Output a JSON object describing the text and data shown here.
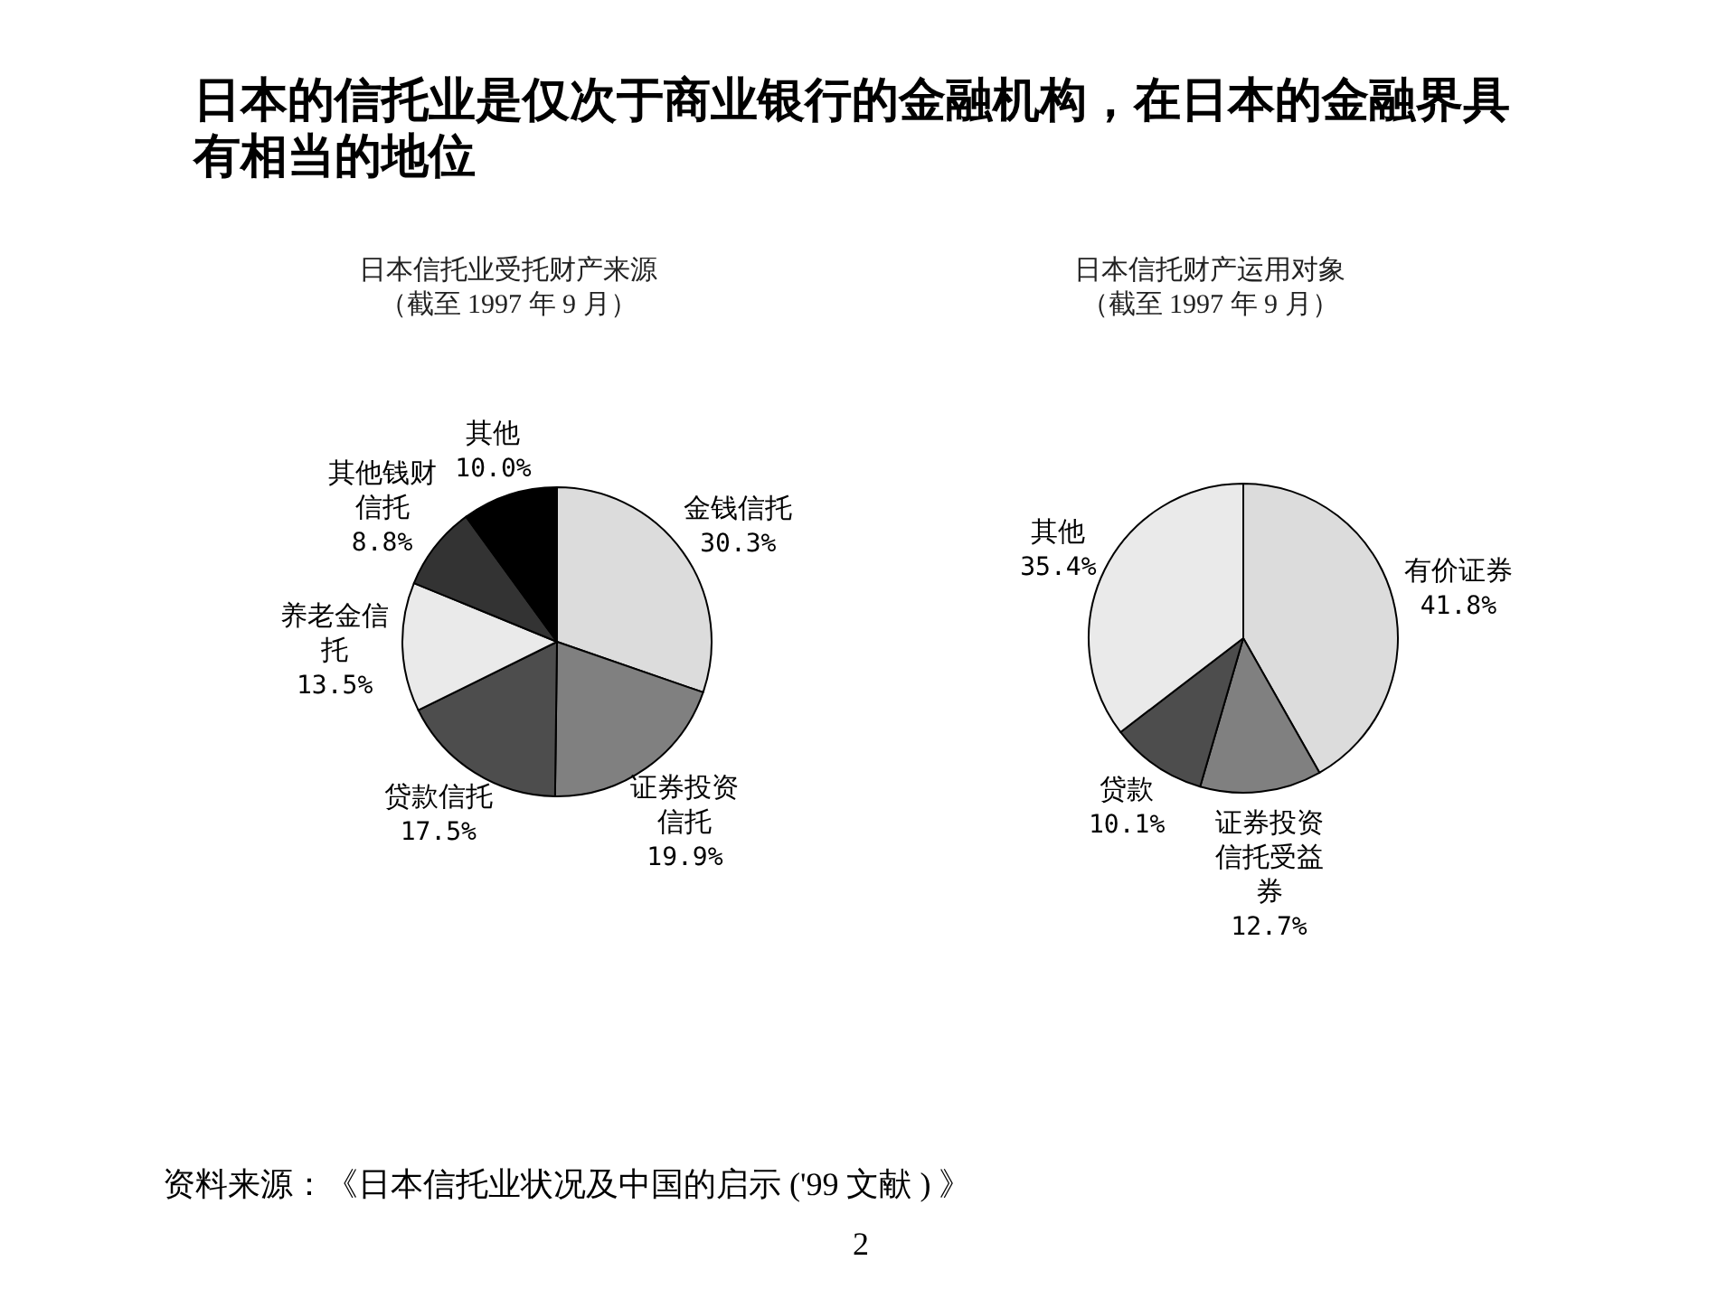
{
  "chart_data": [
    {
      "type": "pie",
      "title": "日本信托业受托财产来源",
      "subtitle": "（截至 1997 年 9 月）",
      "categories": [
        "金钱信托",
        "证券投资信托",
        "贷款信托",
        "养老金信托",
        "其他钱财信托",
        "其他"
      ],
      "values": [
        30.3,
        19.9,
        17.5,
        13.5,
        8.8,
        10.0
      ],
      "value_labels": [
        "30.3%",
        "19.9%",
        "17.5%",
        "13.5%",
        "8.8%",
        "10.0%"
      ],
      "colors": [
        "#dcdcdc",
        "#808080",
        "#4d4d4d",
        "#eaeaea",
        "#333333",
        "#000000"
      ],
      "annotations": [
        "日本的信托业是仅次于商业银行的金融机构，在日本的金融界具有相当的地位",
        "资料来源：《日本信托业状况及中国的启示 ('99 文献 ) 》",
        "2"
      ]
    },
    {
      "type": "pie",
      "title": "日本信托财产运用对象",
      "subtitle": "（截至 1997 年 9 月）",
      "categories": [
        "有价证券",
        "证券投资信托受益券",
        "贷款",
        "其他"
      ],
      "values": [
        41.8,
        12.7,
        10.1,
        35.4
      ],
      "value_labels": [
        "41.8%",
        "12.7%",
        "10.1%",
        "35.4%"
      ],
      "colors": [
        "#dcdcdc",
        "#808080",
        "#4d4d4d",
        "#eaeaea"
      ]
    }
  ]
}
